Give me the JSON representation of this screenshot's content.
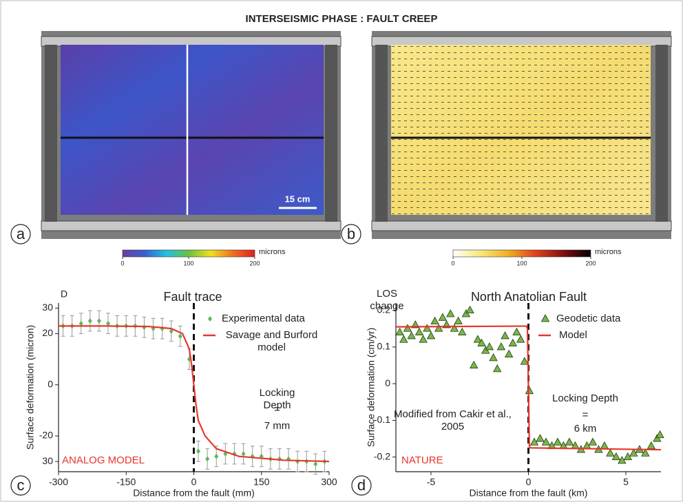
{
  "title": "INTERSEISMIC PHASE : FAULT CREEP",
  "panels": [
    {
      "label": "a",
      "scale_bar": "15 cm",
      "colorbar": {
        "lim": [
          0,
          200
        ],
        "ticks": [
          0,
          100,
          200
        ],
        "label": "microns",
        "colors": [
          "#6a3fa0",
          "#3a5fd0",
          "#22c0e0",
          "#6cc040",
          "#f0e020",
          "#f07020",
          "#e02020"
        ]
      }
    },
    {
      "label": "b",
      "colorbar": {
        "lim": [
          0,
          200
        ],
        "ticks": [
          0,
          100,
          200
        ],
        "label": "microns",
        "colors": [
          "#ffffff",
          "#f8e878",
          "#f0b020",
          "#e04020",
          "#801010",
          "#000000"
        ]
      }
    }
  ],
  "chart_data": [
    {
      "type": "scatter",
      "panel_label": "c",
      "corner_label": "D",
      "title": "Fault trace",
      "x_label": "Distance from the fault (mm)",
      "y_label": "Surface deformation (micron)",
      "xlim": [
        -300,
        300
      ],
      "xticks": [
        -300,
        -150,
        0,
        150,
        300
      ],
      "ylim": [
        -34,
        32
      ],
      "yticks": [
        30,
        20,
        0,
        -20,
        {
          "value": -30,
          "label": "30"
        }
      ],
      "series": [
        {
          "name": "Experimental data",
          "color": "#5cb85c",
          "kind": "points",
          "x": [
            -290,
            -270,
            -250,
            -230,
            -210,
            -190,
            -170,
            -150,
            -130,
            -110,
            -90,
            -70,
            -50,
            -30,
            -10,
            10,
            30,
            50,
            70,
            90,
            110,
            130,
            150,
            170,
            190,
            210,
            230,
            250,
            270,
            290
          ],
          "values": [
            23,
            23,
            24,
            25,
            25,
            24,
            23,
            23,
            23,
            22.5,
            22,
            22,
            21,
            19,
            10,
            -26,
            -29,
            -28,
            -27,
            -27,
            -27,
            -28,
            -28,
            -29,
            -29,
            -29,
            -30,
            -30,
            -31,
            -30
          ],
          "errors": [
            4,
            4,
            4,
            4,
            4,
            4,
            4,
            4,
            4,
            4,
            4,
            4,
            4,
            4,
            4,
            4,
            4,
            4,
            4,
            4,
            4,
            4,
            4,
            4,
            4,
            4,
            4,
            4,
            4,
            4
          ]
        },
        {
          "name": "Savage and Burford model",
          "color": "#e8352b",
          "kind": "line",
          "x": [
            -300,
            -200,
            -100,
            -50,
            -25,
            -10,
            -5,
            0,
            5,
            10,
            25,
            50,
            100,
            200,
            300
          ],
          "values": [
            23,
            23,
            22.8,
            22,
            20,
            14,
            8,
            0,
            -8,
            -14,
            -20,
            -25,
            -28,
            -29.5,
            -30
          ]
        }
      ],
      "annotations": [
        "Locking Depth",
        "=",
        "7 mm",
        "ANALOG MODEL"
      ]
    },
    {
      "type": "scatter",
      "panel_label": "d",
      "title": "North Anatolian Fault",
      "x_label": "Distance from the fault (km)",
      "y_label": "Surface deformation (cm/yr)",
      "xlim": [
        -6.8,
        6.8
      ],
      "xticks": [
        -5,
        0,
        5
      ],
      "ylim": [
        -0.24,
        0.22
      ],
      "yticks": [
        0.2,
        0.1,
        0,
        -0.1,
        -0.2
      ],
      "series": [
        {
          "name": "Geodetic data",
          "color": "#7ab648",
          "kind": "triangles",
          "x": [
            -6.6,
            -6.4,
            -6.2,
            -6.0,
            -5.8,
            -5.6,
            -5.4,
            -5.2,
            -5.0,
            -4.8,
            -4.6,
            -4.4,
            -4.2,
            -4.0,
            -3.8,
            -3.6,
            -3.4,
            -3.2,
            -3.0,
            -2.8,
            -2.6,
            -2.4,
            -2.2,
            -2.0,
            -1.8,
            -1.6,
            -1.4,
            -1.2,
            -1.0,
            -0.8,
            -0.6,
            -0.4,
            -0.2,
            0.05,
            0.3,
            0.6,
            0.9,
            1.2,
            1.5,
            1.8,
            2.1,
            2.4,
            2.7,
            3.0,
            3.3,
            3.6,
            3.9,
            4.2,
            4.5,
            4.8,
            5.1,
            5.4,
            5.7,
            6.0,
            6.3,
            6.6,
            6.75
          ],
          "values": [
            0.14,
            0.12,
            0.15,
            0.13,
            0.16,
            0.14,
            0.12,
            0.15,
            0.13,
            0.17,
            0.15,
            0.18,
            0.16,
            0.19,
            0.15,
            0.17,
            0.14,
            0.19,
            0.2,
            0.05,
            0.12,
            0.11,
            0.09,
            0.1,
            0.07,
            0.04,
            0.1,
            0.13,
            0.08,
            0.11,
            0.14,
            0.12,
            0.06,
            -0.02,
            -0.16,
            -0.15,
            -0.16,
            -0.17,
            -0.16,
            -0.17,
            -0.16,
            -0.17,
            -0.18,
            -0.17,
            -0.16,
            -0.18,
            -0.17,
            -0.19,
            -0.2,
            -0.21,
            -0.2,
            -0.19,
            -0.18,
            -0.19,
            -0.17,
            -0.15,
            -0.14
          ]
        },
        {
          "name": "Model",
          "color": "#e8352b",
          "kind": "line",
          "x": [
            -6.8,
            -0.1,
            -0.05,
            0.05,
            0.1,
            6.8
          ],
          "values": [
            0.155,
            0.157,
            0.15,
            -0.17,
            -0.175,
            -0.18
          ]
        }
      ],
      "annotations": [
        "LOS change",
        "Locking Depth",
        "=",
        "6 km",
        "Modified from Cakir et al., 2005",
        "NATURE"
      ]
    }
  ]
}
